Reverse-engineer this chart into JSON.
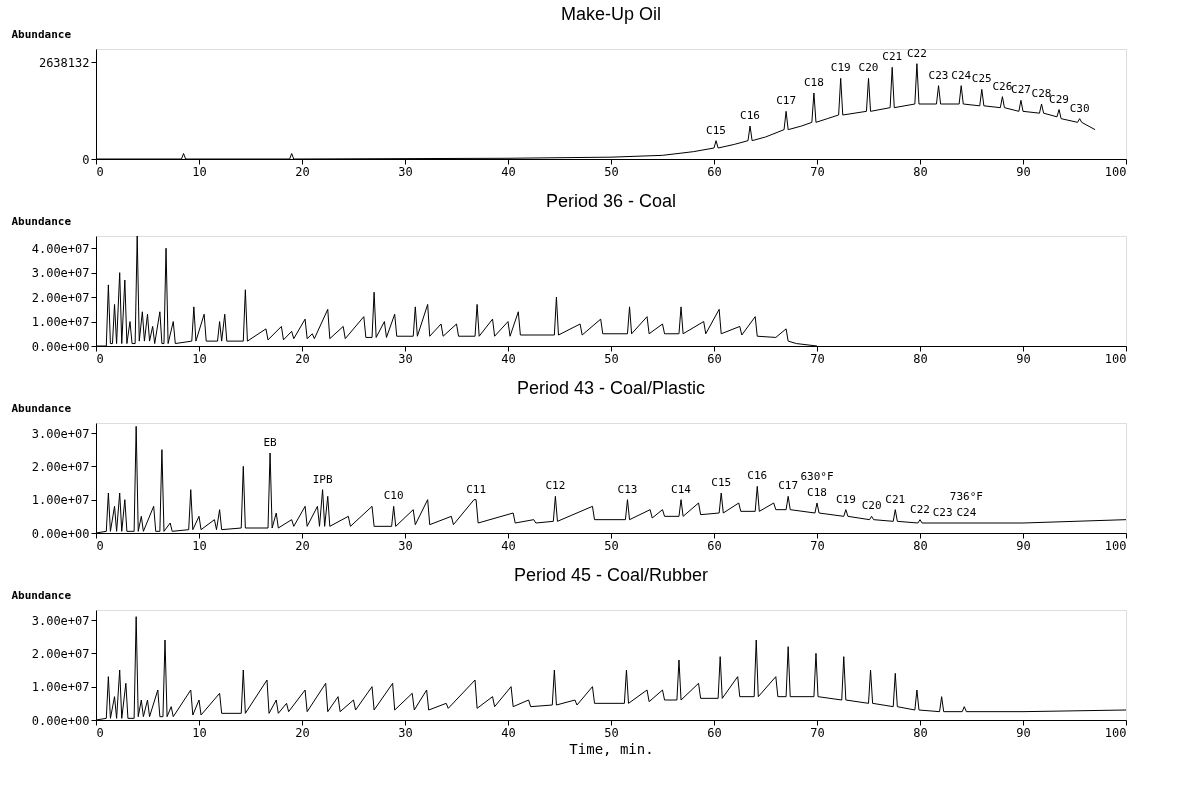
{
  "chart_data": [
    {
      "type": "line",
      "title": "Make-Up Oil",
      "ylabel": "Abundance",
      "xlim": [
        0,
        100
      ],
      "ylim": [
        0,
        3000000
      ],
      "xticks": [
        0,
        10,
        20,
        30,
        40,
        50,
        60,
        70,
        80,
        90,
        100
      ],
      "yticks": [
        0,
        2638132
      ],
      "x": [
        0,
        8.3,
        8.5,
        8.7,
        18.8,
        19,
        19.2,
        40,
        50,
        55,
        58,
        60,
        60.2,
        60.4,
        62,
        63.3,
        63.5,
        63.7,
        65,
        66.8,
        67,
        67.2,
        68.5,
        69.5,
        69.7,
        69.9,
        71,
        72.1,
        72.3,
        72.5,
        74.8,
        75,
        75.2,
        77.1,
        77.3,
        77.5,
        79.5,
        79.7,
        79.9,
        81.6,
        81.8,
        82,
        83.8,
        84,
        84.2,
        85.8,
        86,
        86.2,
        87.8,
        88,
        88.2,
        89.6,
        89.8,
        90,
        91.6,
        91.8,
        92,
        93.3,
        93.5,
        93.7,
        95.3,
        95.5,
        95.7,
        97
      ],
      "series": [
        {
          "color": "#000000",
          "values": [
            0,
            0,
            150000.0,
            0,
            0,
            150000.0,
            0,
            20000.0,
            50000.0,
            100000.0,
            200000.0,
            300000.0,
            500000.0,
            300000.0,
            400000.0,
            500000.0,
            900000.0,
            500000.0,
            600000.0,
            800000.0,
            1300000.0,
            800000.0,
            900000.0,
            1000000.0,
            1800000.0,
            1000000.0,
            1100000.0,
            1200000.0,
            2200000.0,
            1200000.0,
            1300000.0,
            2200000.0,
            1300000.0,
            1400000.0,
            2500000.0,
            1400000.0,
            1500000.0,
            2600000.0,
            1500000.0,
            1500000.0,
            2000000.0,
            1500000.0,
            1500000.0,
            2000000.0,
            1500000.0,
            1450000.0,
            1900000.0,
            1450000.0,
            1400000.0,
            1700000.0,
            1400000.0,
            1300000.0,
            1600000.0,
            1300000.0,
            1250000.0,
            1500000.0,
            1250000.0,
            1150000.0,
            1350000.0,
            1100000.0,
            1000000.0,
            1100000.0,
            1000000.0,
            800000.0
          ]
        }
      ],
      "annotations": [
        {
          "text": "C15",
          "x": 60.2,
          "y": 500000.0
        },
        {
          "text": "C16",
          "x": 63.5,
          "y": 900000.0
        },
        {
          "text": "C17",
          "x": 67,
          "y": 1300000.0
        },
        {
          "text": "C18",
          "x": 69.7,
          "y": 1800000.0
        },
        {
          "text": "C19",
          "x": 72.3,
          "y": 2200000.0
        },
        {
          "text": "C20",
          "x": 75,
          "y": 2200000.0
        },
        {
          "text": "C21",
          "x": 77.3,
          "y": 2500000.0
        },
        {
          "text": "C22",
          "x": 79.7,
          "y": 2600000.0
        },
        {
          "text": "C23",
          "x": 81.8,
          "y": 2000000.0
        },
        {
          "text": "C24",
          "x": 84,
          "y": 2000000.0
        },
        {
          "text": "C25",
          "x": 86,
          "y": 1900000.0
        },
        {
          "text": "C26",
          "x": 88,
          "y": 1700000.0
        },
        {
          "text": "C27",
          "x": 89.8,
          "y": 1600000.0
        },
        {
          "text": "C28",
          "x": 91.8,
          "y": 1500000.0
        },
        {
          "text": "C29",
          "x": 93.5,
          "y": 1350000.0
        },
        {
          "text": "C30",
          "x": 95.5,
          "y": 1100000.0
        }
      ]
    },
    {
      "type": "line",
      "title": "Period 36 - Coal",
      "ylabel": "Abundance",
      "xlim": [
        0,
        100
      ],
      "ylim": [
        0,
        45000000.0
      ],
      "xticks": [
        0,
        10,
        20,
        30,
        40,
        50,
        60,
        70,
        80,
        90,
        100
      ],
      "yticks": [
        {
          "value": 0,
          "label": "0.00e+00"
        },
        {
          "value": 10000000.0,
          "label": "1.00e+07"
        },
        {
          "value": 20000000.0,
          "label": "2.00e+07"
        },
        {
          "value": 30000000.0,
          "label": "3.00e+07"
        },
        {
          "value": 40000000.0,
          "label": "4.00e+07"
        }
      ],
      "x": [
        0,
        1,
        1.2,
        1.4,
        1.6,
        1.8,
        2.0,
        2.3,
        2.5,
        2.8,
        3.0,
        3.3,
        3.5,
        3.8,
        4.0,
        4.2,
        4.5,
        4.7,
        5.0,
        5.2,
        5.5,
        5.7,
        6.2,
        6.4,
        6.6,
        6.8,
        7.0,
        7.5,
        7.7,
        9.3,
        9.5,
        9.7,
        10.5,
        10.7,
        11.8,
        12,
        12.2,
        12.5,
        12.7,
        14.3,
        14.5,
        14.7,
        16.5,
        16.7,
        18,
        18.2,
        19,
        19.2,
        20.3,
        20.5,
        21,
        21.2,
        22.5,
        22.7,
        24,
        24.2,
        26,
        26.2,
        26.8,
        27,
        27.2,
        28,
        28.2,
        29,
        29.2,
        30.8,
        31,
        31.2,
        32.2,
        32.4,
        33.5,
        33.7,
        35,
        35.2,
        36.8,
        37,
        37.2,
        38.5,
        38.7,
        40,
        40.2,
        41,
        41.2,
        44.5,
        44.7,
        44.9,
        47,
        47.2,
        49,
        49.2,
        51.6,
        51.8,
        52,
        53.5,
        53.7,
        55,
        55.2,
        56.6,
        56.8,
        57,
        59,
        59.2,
        60.5,
        60.7,
        62.5,
        62.7,
        64,
        64.2,
        66,
        67,
        67.2,
        68,
        70
      ],
      "series": [
        {
          "color": "#000000",
          "values": [
            0,
            0,
            25000000.0,
            1000000.0,
            1000000.0,
            17000000.0,
            1000000.0,
            30000000.0,
            1000000.0,
            27000000.0,
            1000000.0,
            10000000.0,
            1000000.0,
            1000000.0,
            45000000.0,
            2000000.0,
            14000000.0,
            2000000.0,
            13000000.0,
            2000000.0,
            8000000.0,
            1000000.0,
            14000000.0,
            1000000.0,
            1000000.0,
            40000000.0,
            1000000.0,
            10000000.0,
            1000000.0,
            2000000.0,
            16000000.0,
            2000000.0,
            13000000.0,
            2000000.0,
            2000000.0,
            10000000.0,
            2000000.0,
            13000000.0,
            2000000.0,
            2000000.0,
            23000000.0,
            2000000.0,
            7000000.0,
            2500000.0,
            8000000.0,
            2500000.0,
            6000000.0,
            3000000.0,
            11000000.0,
            3000000.0,
            5000000.0,
            3000000.0,
            15000000.0,
            3000000.0,
            8000000.0,
            3000000.0,
            12000000.0,
            3500000.0,
            3500000.0,
            22000000.0,
            3500000.0,
            10000000.0,
            3500000.0,
            13000000.0,
            4000000.0,
            4000000.0,
            16000000.0,
            4000000.0,
            17000000.0,
            4000000.0,
            9000000.0,
            4000000.0,
            9000000.0,
            4000000.0,
            4000000.0,
            17000000.0,
            4000000.0,
            11000000.0,
            4000000.0,
            10000000.0,
            4000000.0,
            14000000.0,
            4500000.0,
            4500000.0,
            20000000.0,
            4500000.0,
            9000000.0,
            4500000.0,
            11000000.0,
            5000000.0,
            5000000.0,
            16000000.0,
            5000000.0,
            12000000.0,
            5000000.0,
            9000000.0,
            5000000.0,
            5000000.0,
            16000000.0,
            5000000.0,
            10000000.0,
            5000000.0,
            15000000.0,
            5000000.0,
            8000000.0,
            4500000.0,
            12000000.0,
            4000000.0,
            3500000.0,
            7000000.0,
            2000000.0,
            1000000.0,
            0
          ]
        }
      ]
    },
    {
      "type": "line",
      "title": "Period 43 - Coal/Plastic",
      "ylabel": "Abundance",
      "xlim": [
        0,
        100
      ],
      "ylim": [
        0,
        33000000.0
      ],
      "xticks": [
        0,
        10,
        20,
        30,
        40,
        50,
        60,
        70,
        80,
        90,
        100
      ],
      "yticks": [
        {
          "value": 0,
          "label": "0.00e+00"
        },
        {
          "value": 10000000.0,
          "label": "1.00e+07"
        },
        {
          "value": 20000000.0,
          "label": "2.00e+07"
        },
        {
          "value": 30000000.0,
          "label": "3.00e+07"
        }
      ],
      "x": [
        0,
        1.0,
        1.2,
        1.4,
        1.8,
        2.0,
        2.3,
        2.5,
        2.8,
        3.0,
        3.7,
        3.9,
        4.1,
        4.4,
        4.6,
        5.6,
        5.8,
        6.2,
        6.4,
        6.6,
        7.2,
        7.4,
        9.0,
        9.2,
        9.4,
        10,
        10.2,
        11.5,
        11.7,
        12,
        12.2,
        14.1,
        14.3,
        14.5,
        16.7,
        16.9,
        17.1,
        17.5,
        17.7,
        19,
        19.2,
        20.3,
        20.5,
        21.5,
        21.7,
        22,
        22.2,
        22.5,
        22.7,
        24.5,
        24.7,
        26.8,
        27,
        28.7,
        28.9,
        29.1,
        30.8,
        31,
        32.2,
        32.4,
        34.5,
        34.7,
        36.7,
        36.9,
        37.1,
        40.5,
        40.7,
        42.5,
        42.7,
        44.4,
        44.6,
        44.8,
        48.2,
        48.4,
        51.4,
        51.6,
        51.8,
        53.8,
        54,
        55,
        55.2,
        56.6,
        56.8,
        57,
        58.5,
        58.7,
        60.5,
        60.7,
        60.9,
        62.4,
        62.6,
        64,
        64.2,
        64.4,
        65.8,
        66,
        67,
        67.2,
        67.4,
        69.8,
        70,
        70.2,
        72.6,
        72.8,
        73,
        75.1,
        75.3,
        75.5,
        77.4,
        77.6,
        77.8,
        79.8,
        80,
        80.2,
        90,
        100
      ],
      "series": [
        {
          "color": "#000000",
          "values": [
            0,
            500000.0,
            12000000.0,
            500000.0,
            8000000.0,
            500000.0,
            12000000.0,
            500000.0,
            10000000.0,
            500000.0,
            500000.0,
            32000000.0,
            500000.0,
            5000000.0,
            500000.0,
            8000000.0,
            500000.0,
            500000.0,
            25000000.0,
            500000.0,
            3000000.0,
            500000.0,
            1000000.0,
            13000000.0,
            1000000.0,
            5000000.0,
            1000000.0,
            4000000.0,
            1000000.0,
            7000000.0,
            1000000.0,
            1500000.0,
            20000000.0,
            1500000.0,
            1500000.0,
            24000000.0,
            1500000.0,
            6000000.0,
            1500000.0,
            4000000.0,
            2000000.0,
            8000000.0,
            2000000.0,
            8000000.0,
            2000000.0,
            13000000.0,
            2000000.0,
            11000000.0,
            2000000.0,
            5000000.0,
            2000000.0,
            8000000.0,
            2000000.0,
            2000000.0,
            8000000.0,
            2000000.0,
            7000000.0,
            2500000.0,
            10000000.0,
            2500000.0,
            5000000.0,
            2500000.0,
            10000000.0,
            10000000.0,
            3000000.0,
            6000000.0,
            3000000.0,
            4000000.0,
            3000000.0,
            3500000.0,
            11000000.0,
            3500000.0,
            8000000.0,
            4000000.0,
            4000000.0,
            10000000.0,
            4000000.0,
            7000000.0,
            4500000.0,
            7000000.0,
            5000000.0,
            5000000.0,
            10000000.0,
            5000000.0,
            9000000.0,
            5500000.0,
            6000000.0,
            12000000.0,
            6000000.0,
            9000000.0,
            6500000.0,
            6500000.0,
            14000000.0,
            6500000.0,
            9000000.0,
            7000000.0,
            7000000.0,
            11000000.0,
            7000000.0,
            6000000.0,
            9000000.0,
            6000000.0,
            5000000.0,
            7000000.0,
            5000000.0,
            4000000.0,
            5000000.0,
            4000000.0,
            3500000.0,
            7000000.0,
            3500000.0,
            3000000.0,
            4000000.0,
            3000000.0,
            3000000.0,
            4000000.0
          ]
        }
      ],
      "annotations": [
        {
          "text": "EB",
          "x": 16.9,
          "y": 24000000.0
        },
        {
          "text": "IPB",
          "x": 22,
          "y": 13000000.0
        },
        {
          "text": "C10",
          "x": 28.9,
          "y": 8000000.0
        },
        {
          "text": "C11",
          "x": 36.9,
          "y": 10000000.0
        },
        {
          "text": "C12",
          "x": 44.6,
          "y": 11000000.0
        },
        {
          "text": "C13",
          "x": 51.6,
          "y": 10000000.0
        },
        {
          "text": "C14",
          "x": 56.8,
          "y": 10000000.0
        },
        {
          "text": "C15",
          "x": 60.7,
          "y": 12000000.0
        },
        {
          "text": "C16",
          "x": 64.2,
          "y": 14000000.0
        },
        {
          "text": "C17",
          "x": 67.2,
          "y": 11000000.0
        },
        {
          "text": "C18",
          "x": 70,
          "y": 9000000.0
        },
        {
          "text": "C19",
          "x": 72.8,
          "y": 7000000.0
        },
        {
          "text": "C20",
          "x": 75.3,
          "y": 5000000.0
        },
        {
          "text": "C21",
          "x": 77.6,
          "y": 7000000.0
        },
        {
          "text": "C22",
          "x": 80,
          "y": 4000000.0
        },
        {
          "text": "C23",
          "x": 82.2,
          "y": 3000000.0
        },
        {
          "text": "C24",
          "x": 84.5,
          "y": 3000000.0
        },
        {
          "text": "630°F",
          "x": 70,
          "y": 9000000.0
        },
        {
          "text": "736°F",
          "x": 84.5,
          "y": 3000000.0
        }
      ]
    },
    {
      "type": "line",
      "title": "Period 45 - Coal/Rubber",
      "ylabel": "Abundance",
      "xlabel": "Time, min.",
      "xlim": [
        0,
        100
      ],
      "ylim": [
        0,
        33000000.0
      ],
      "xticks": [
        0,
        10,
        20,
        30,
        40,
        50,
        60,
        70,
        80,
        90,
        100
      ],
      "yticks": [
        {
          "value": 0,
          "label": "0.00e+00"
        },
        {
          "value": 10000000.0,
          "label": "1.00e+07"
        },
        {
          "value": 20000000.0,
          "label": "2.00e+07"
        },
        {
          "value": 30000000.0,
          "label": "3.00e+07"
        }
      ],
      "x": [
        0,
        1.0,
        1.2,
        1.4,
        1.8,
        2.0,
        2.3,
        2.5,
        2.9,
        3.1,
        3.7,
        3.9,
        4.1,
        4.4,
        4.6,
        5.0,
        5.2,
        6.0,
        6.2,
        6.5,
        6.7,
        6.9,
        7.3,
        7.5,
        9.2,
        9.4,
        10,
        10.2,
        12,
        12.2,
        14.1,
        14.3,
        14.5,
        16.6,
        16.8,
        17.5,
        17.7,
        18.5,
        18.7,
        20.3,
        20.5,
        22.3,
        22.5,
        23.5,
        23.7,
        25,
        25.2,
        26.8,
        27,
        28.8,
        29,
        30.7,
        30.9,
        32.1,
        32.3,
        34,
        34.2,
        36.8,
        37,
        38.5,
        38.7,
        40.3,
        40.5,
        42,
        42.2,
        44.3,
        44.5,
        44.7,
        46.5,
        46.7,
        48.2,
        48.4,
        51.3,
        51.5,
        51.7,
        53.5,
        53.7,
        55,
        55.2,
        56.4,
        56.6,
        56.8,
        58.5,
        58.7,
        60.4,
        60.6,
        60.8,
        62.3,
        62.5,
        63.9,
        64.1,
        64.3,
        66,
        66.2,
        67,
        67.2,
        67.4,
        69.7,
        69.9,
        70.1,
        72.4,
        72.6,
        72.8,
        75,
        75.2,
        75.4,
        77.4,
        77.6,
        77.8,
        79.5,
        79.7,
        79.9,
        81.9,
        82.1,
        82.3,
        84.1,
        84.3,
        84.5,
        90,
        100
      ],
      "series": [
        {
          "color": "#000000",
          "values": [
            0,
            500000.0,
            13000000.0,
            500000.0,
            7000000.0,
            500000.0,
            15000000.0,
            500000.0,
            11000000.0,
            500000.0,
            500000.0,
            31000000.0,
            1000000.0,
            6000000.0,
            1000000.0,
            6000000.0,
            1000000.0,
            9000000.0,
            1000000.0,
            1000000.0,
            24000000.0,
            1000000.0,
            4000000.0,
            1000000.0,
            9000000.0,
            1500000.0,
            6000000.0,
            1500000.0,
            8000000.0,
            2000000.0,
            2000000.0,
            15000000.0,
            2000000.0,
            12000000.0,
            2000000.0,
            6000000.0,
            2000000.0,
            5000000.0,
            2500000.0,
            9000000.0,
            2500000.0,
            11000000.0,
            2500000.0,
            7000000.0,
            2500000.0,
            6000000.0,
            3000000.0,
            10000000.0,
            3000000.0,
            11000000.0,
            3000000.0,
            8000000.0,
            3000000.0,
            9000000.0,
            3000000.0,
            5000000.0,
            3500000.0,
            12000000.0,
            3500000.0,
            7000000.0,
            4000000.0,
            10000000.0,
            4000000.0,
            6000000.0,
            4000000.0,
            4500000.0,
            15000000.0,
            4500000.0,
            6000000.0,
            4500000.0,
            10000000.0,
            5000000.0,
            5000000.0,
            15000000.0,
            5000000.0,
            9000000.0,
            5500000.0,
            9000000.0,
            6000000.0,
            6000000.0,
            18000000.0,
            6000000.0,
            11000000.0,
            6500000.0,
            6500000.0,
            19000000.0,
            6500000.0,
            13000000.0,
            7000000.0,
            7000000.0,
            24000000.0,
            7000000.0,
            13000000.0,
            7000000.0,
            7000000.0,
            22000000.0,
            7000000.0,
            7000000.0,
            20000000.0,
            7000000.0,
            6000000.0,
            19000000.0,
            6000000.0,
            5000000.0,
            15000000.0,
            5000000.0,
            4000000.0,
            14000000.0,
            4000000.0,
            3000000.0,
            9000000.0,
            3000000.0,
            2500000.0,
            7000000.0,
            2500000.0,
            2500000.0,
            4000000.0,
            2500000.0,
            2500000.0,
            3000000.0
          ]
        }
      ]
    }
  ]
}
